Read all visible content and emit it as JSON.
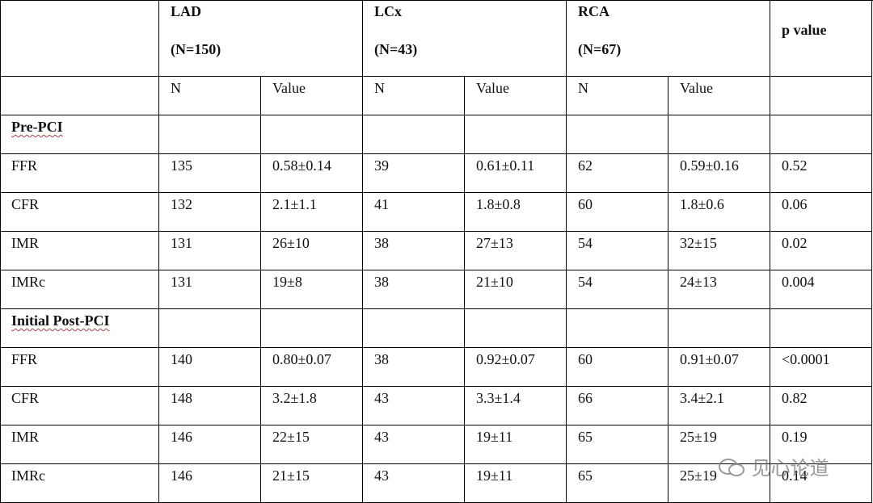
{
  "table": {
    "groups": [
      {
        "name": "LAD",
        "n": "(N=150)"
      },
      {
        "name": "LCx",
        "n": "(N=43)"
      },
      {
        "name": "RCA",
        "n": "(N=67)"
      }
    ],
    "p_header": "p value",
    "subheader": [
      "N",
      "Value",
      "N",
      "Value",
      "N",
      "Value"
    ],
    "sections": [
      {
        "title": "Pre-PCI",
        "rows": [
          {
            "label": "FFR",
            "cells": [
              "135",
              "0.58±0.14",
              "39",
              "0.61±0.11",
              "62",
              "0.59±0.16",
              "0.52"
            ]
          },
          {
            "label": "CFR",
            "cells": [
              "132",
              "2.1±1.1",
              "41",
              "1.8±0.8",
              "60",
              "1.8±0.6",
              "0.06"
            ]
          },
          {
            "label": "IMR",
            "cells": [
              "131",
              "26±10",
              "38",
              "27±13",
              "54",
              "32±15",
              "0.02"
            ]
          },
          {
            "label": "IMRc",
            "cells": [
              "131",
              "19±8",
              "38",
              "21±10",
              "54",
              "24±13",
              "0.004"
            ]
          }
        ]
      },
      {
        "title": "Initial Post-PCI",
        "rows": [
          {
            "label": "FFR",
            "cells": [
              "140",
              "0.80±0.07",
              "38",
              "0.92±0.07",
              "60",
              "0.91±0.07",
              "<0.0001"
            ]
          },
          {
            "label": "CFR",
            "cells": [
              "148",
              "3.2±1.8",
              "43",
              "3.3±1.4",
              "66",
              "3.4±2.1",
              "0.82"
            ]
          },
          {
            "label": "IMR",
            "cells": [
              "146",
              "22±15",
              "43",
              "19±11",
              "65",
              "25±19",
              "0.19"
            ]
          },
          {
            "label": "IMRc",
            "cells": [
              "146",
              "21±15",
              "43",
              "19±11",
              "65",
              "25±19",
              "0.14"
            ]
          }
        ]
      }
    ]
  },
  "watermark": "见心论道"
}
